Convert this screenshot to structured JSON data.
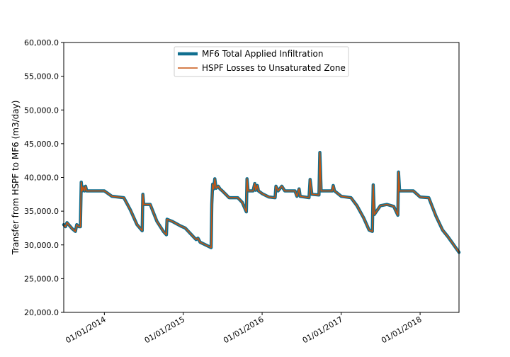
{
  "chart_data": {
    "type": "line",
    "ylabel": "Transfer from HSPF to MF6 (m3/day)",
    "ylim": [
      20000,
      60000
    ],
    "yticks": [
      "20,000.0",
      "25,000.0",
      "30,000.0",
      "35,000.0",
      "40,000.0",
      "45,000.0",
      "50,000.0",
      "55,000.0",
      "60,000.0"
    ],
    "ytick_values": [
      20000,
      25000,
      30000,
      35000,
      40000,
      45000,
      50000,
      55000,
      60000
    ],
    "xlim": [
      "2013-06-27",
      "2018-06-30"
    ],
    "xticks": [
      "01/01/2014",
      "01/01/2015",
      "01/01/2016",
      "01/01/2017",
      "01/01/2018"
    ],
    "xtick_dates": [
      "2014-01-01",
      "2015-01-01",
      "2016-01-01",
      "2017-01-01",
      "2018-01-01"
    ],
    "grid": false,
    "legend_position": "top-center",
    "series": [
      {
        "name": "MF6 Total Applied Infiltration",
        "color": "#106f8f",
        "points": [
          [
            "2013-06-27",
            33000
          ],
          [
            "2013-07-05",
            32700
          ],
          [
            "2013-07-12",
            33300
          ],
          [
            "2013-07-20",
            33000
          ],
          [
            "2013-08-05",
            32400
          ],
          [
            "2013-08-20",
            32000
          ],
          [
            "2013-08-26",
            33000
          ],
          [
            "2013-09-05",
            32700
          ],
          [
            "2013-09-12",
            32700
          ],
          [
            "2013-09-16",
            39300
          ],
          [
            "2013-09-20",
            38000
          ],
          [
            "2013-09-25",
            38600
          ],
          [
            "2013-10-01",
            38000
          ],
          [
            "2013-10-06",
            38700
          ],
          [
            "2013-10-11",
            38000
          ],
          [
            "2014-01-01",
            38000
          ],
          [
            "2014-02-05",
            37200
          ],
          [
            "2014-04-01",
            37000
          ],
          [
            "2014-05-01",
            35200
          ],
          [
            "2014-06-01",
            33000
          ],
          [
            "2014-06-25",
            32100
          ],
          [
            "2014-06-28",
            37500
          ],
          [
            "2014-07-02",
            36000
          ],
          [
            "2014-08-01",
            36000
          ],
          [
            "2014-09-01",
            33500
          ],
          [
            "2014-10-01",
            32000
          ],
          [
            "2014-10-15",
            31500
          ],
          [
            "2014-10-18",
            33800
          ],
          [
            "2014-11-10",
            33500
          ],
          [
            "2014-12-20",
            32800
          ],
          [
            "2015-01-10",
            32500
          ],
          [
            "2015-03-01",
            30800
          ],
          [
            "2015-03-10",
            31000
          ],
          [
            "2015-03-20",
            30400
          ],
          [
            "2015-05-10",
            29600
          ],
          [
            "2015-05-13",
            36000
          ],
          [
            "2015-05-17",
            39000
          ],
          [
            "2015-05-22",
            38300
          ],
          [
            "2015-05-27",
            39800
          ],
          [
            "2015-06-02",
            38400
          ],
          [
            "2015-06-12",
            38700
          ],
          [
            "2015-06-20",
            38300
          ],
          [
            "2015-07-01",
            38000
          ],
          [
            "2015-08-01",
            37000
          ],
          [
            "2015-09-10",
            37000
          ],
          [
            "2015-10-01",
            36300
          ],
          [
            "2015-10-20",
            34900
          ],
          [
            "2015-10-23",
            39800
          ],
          [
            "2015-10-28",
            38000
          ],
          [
            "2015-11-20",
            38000
          ],
          [
            "2015-11-28",
            39100
          ],
          [
            "2015-12-02",
            38100
          ],
          [
            "2015-12-10",
            38800
          ],
          [
            "2015-12-15",
            38000
          ],
          [
            "2016-01-01",
            37600
          ],
          [
            "2016-02-01",
            37100
          ],
          [
            "2016-03-01",
            37000
          ],
          [
            "2016-03-05",
            38700
          ],
          [
            "2016-03-15",
            38000
          ],
          [
            "2016-04-01",
            38700
          ],
          [
            "2016-04-15",
            38000
          ],
          [
            "2016-06-01",
            38000
          ],
          [
            "2016-06-10",
            37200
          ],
          [
            "2016-06-20",
            38300
          ],
          [
            "2016-06-25",
            37200
          ],
          [
            "2016-08-05",
            37000
          ],
          [
            "2016-08-10",
            39700
          ],
          [
            "2016-08-18",
            37500
          ],
          [
            "2016-09-20",
            37400
          ],
          [
            "2016-09-24",
            43700
          ],
          [
            "2016-09-30",
            38000
          ],
          [
            "2016-11-20",
            38000
          ],
          [
            "2016-11-25",
            38800
          ],
          [
            "2016-12-01",
            38000
          ],
          [
            "2017-01-01",
            37200
          ],
          [
            "2017-02-15",
            37000
          ],
          [
            "2017-03-15",
            35800
          ],
          [
            "2017-04-15",
            34000
          ],
          [
            "2017-05-10",
            32200
          ],
          [
            "2017-05-25",
            32000
          ],
          [
            "2017-05-29",
            38900
          ],
          [
            "2017-06-03",
            34500
          ],
          [
            "2017-07-01",
            35800
          ],
          [
            "2017-08-01",
            36000
          ],
          [
            "2017-09-01",
            35700
          ],
          [
            "2017-09-20",
            34400
          ],
          [
            "2017-09-23",
            40800
          ],
          [
            "2017-09-28",
            38000
          ],
          [
            "2017-12-01",
            38000
          ],
          [
            "2018-01-01",
            37100
          ],
          [
            "2018-02-10",
            37000
          ],
          [
            "2018-03-15",
            34300
          ],
          [
            "2018-04-15",
            32200
          ],
          [
            "2018-05-10",
            31200
          ],
          [
            "2018-06-30",
            28900
          ]
        ]
      },
      {
        "name": "HSPF Losses to Unsaturated Zone",
        "color": "#c85410",
        "points": [
          [
            "2013-06-27",
            33000
          ],
          [
            "2013-07-05",
            32700
          ],
          [
            "2013-07-12",
            33300
          ],
          [
            "2013-07-20",
            33000
          ],
          [
            "2013-08-05",
            32400
          ],
          [
            "2013-08-20",
            32000
          ],
          [
            "2013-08-26",
            33000
          ],
          [
            "2013-09-05",
            32700
          ],
          [
            "2013-09-12",
            32700
          ],
          [
            "2013-09-16",
            39300
          ],
          [
            "2013-09-20",
            38000
          ],
          [
            "2013-09-25",
            38600
          ],
          [
            "2013-10-01",
            38000
          ],
          [
            "2013-10-06",
            38700
          ],
          [
            "2013-10-11",
            38000
          ],
          [
            "2014-01-01",
            38000
          ],
          [
            "2014-02-05",
            37200
          ],
          [
            "2014-04-01",
            37000
          ],
          [
            "2014-05-01",
            35200
          ],
          [
            "2014-06-01",
            33000
          ],
          [
            "2014-06-25",
            32100
          ],
          [
            "2014-06-28",
            37500
          ],
          [
            "2014-07-02",
            36000
          ],
          [
            "2014-08-01",
            36000
          ],
          [
            "2014-09-01",
            33500
          ],
          [
            "2014-10-01",
            32000
          ],
          [
            "2014-10-15",
            31500
          ],
          [
            "2014-10-18",
            33800
          ],
          [
            "2014-11-10",
            33500
          ],
          [
            "2014-12-20",
            32800
          ],
          [
            "2015-01-10",
            32500
          ],
          [
            "2015-03-01",
            30800
          ],
          [
            "2015-03-10",
            31000
          ],
          [
            "2015-03-20",
            30400
          ],
          [
            "2015-05-10",
            29600
          ],
          [
            "2015-05-13",
            36000
          ],
          [
            "2015-05-17",
            39000
          ],
          [
            "2015-05-22",
            38300
          ],
          [
            "2015-05-27",
            39800
          ],
          [
            "2015-06-02",
            38400
          ],
          [
            "2015-06-12",
            38700
          ],
          [
            "2015-06-20",
            38300
          ],
          [
            "2015-07-01",
            38000
          ],
          [
            "2015-08-01",
            37000
          ],
          [
            "2015-09-10",
            37000
          ],
          [
            "2015-10-01",
            36300
          ],
          [
            "2015-10-20",
            34900
          ],
          [
            "2015-10-23",
            39800
          ],
          [
            "2015-10-28",
            38000
          ],
          [
            "2015-11-20",
            38000
          ],
          [
            "2015-11-28",
            39100
          ],
          [
            "2015-12-02",
            38100
          ],
          [
            "2015-12-10",
            38800
          ],
          [
            "2015-12-15",
            38000
          ],
          [
            "2016-01-01",
            37600
          ],
          [
            "2016-02-01",
            37100
          ],
          [
            "2016-03-01",
            37000
          ],
          [
            "2016-03-05",
            38700
          ],
          [
            "2016-03-15",
            38000
          ],
          [
            "2016-04-01",
            38700
          ],
          [
            "2016-04-15",
            38000
          ],
          [
            "2016-06-01",
            38000
          ],
          [
            "2016-06-10",
            37200
          ],
          [
            "2016-06-20",
            38300
          ],
          [
            "2016-06-25",
            37200
          ],
          [
            "2016-08-05",
            37000
          ],
          [
            "2016-08-10",
            39700
          ],
          [
            "2016-08-18",
            37500
          ],
          [
            "2016-09-20",
            37400
          ],
          [
            "2016-09-24",
            43700
          ],
          [
            "2016-09-30",
            38000
          ],
          [
            "2016-11-20",
            38000
          ],
          [
            "2016-11-25",
            38800
          ],
          [
            "2016-12-01",
            38000
          ],
          [
            "2017-01-01",
            37200
          ],
          [
            "2017-02-15",
            37000
          ],
          [
            "2017-03-15",
            35800
          ],
          [
            "2017-04-15",
            34000
          ],
          [
            "2017-05-10",
            32200
          ],
          [
            "2017-05-25",
            32000
          ],
          [
            "2017-05-29",
            38900
          ],
          [
            "2017-06-03",
            34500
          ],
          [
            "2017-07-01",
            35800
          ],
          [
            "2017-08-01",
            36000
          ],
          [
            "2017-09-01",
            35700
          ],
          [
            "2017-09-20",
            34400
          ],
          [
            "2017-09-23",
            40800
          ],
          [
            "2017-09-28",
            38000
          ],
          [
            "2017-12-01",
            38000
          ],
          [
            "2018-01-01",
            37100
          ],
          [
            "2018-02-10",
            37000
          ],
          [
            "2018-03-15",
            34300
          ],
          [
            "2018-04-15",
            32200
          ],
          [
            "2018-05-10",
            31200
          ],
          [
            "2018-06-30",
            28900
          ]
        ]
      }
    ]
  }
}
